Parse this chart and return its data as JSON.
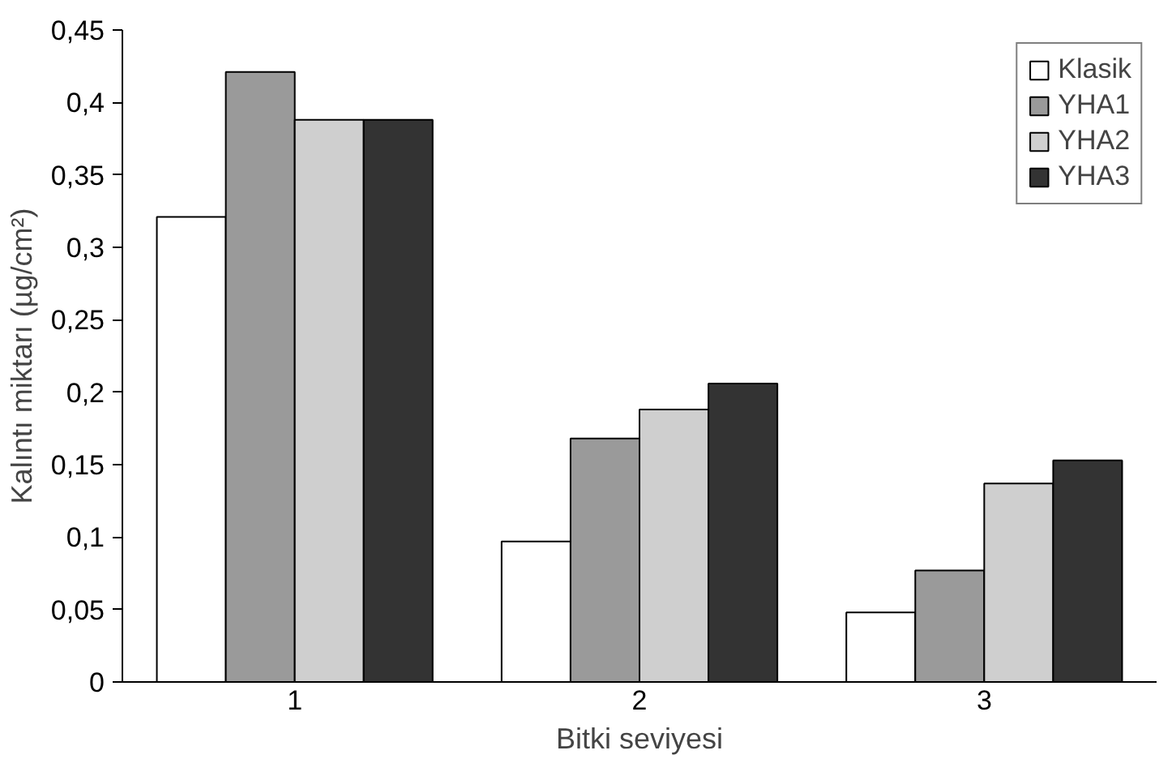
{
  "chart_data": {
    "type": "bar",
    "xlabel": "Bitki seviyesi",
    "ylabel": "Kalıntı miktarı (µg/cm²)",
    "categories": [
      "1",
      "2",
      "3"
    ],
    "series": [
      {
        "name": "Klasik",
        "color": "#ffffff",
        "values": [
          0.321,
          0.097,
          0.048
        ]
      },
      {
        "name": "YHA1",
        "color": "#9a9a9a",
        "values": [
          0.421,
          0.168,
          0.077
        ]
      },
      {
        "name": "YHA2",
        "color": "#cfcfcf",
        "values": [
          0.388,
          0.188,
          0.137
        ]
      },
      {
        "name": "YHA3",
        "color": "#333333",
        "values": [
          0.388,
          0.206,
          0.153
        ]
      }
    ],
    "ylim": [
      0,
      0.45
    ],
    "yticks": [
      {
        "value": 0,
        "label": "0"
      },
      {
        "value": 0.05,
        "label": "0,05"
      },
      {
        "value": 0.1,
        "label": "0,1"
      },
      {
        "value": 0.15,
        "label": "0,15"
      },
      {
        "value": 0.2,
        "label": "0,2"
      },
      {
        "value": 0.25,
        "label": "0,25"
      },
      {
        "value": 0.3,
        "label": "0,3"
      },
      {
        "value": 0.35,
        "label": "0,35"
      },
      {
        "value": 0.4,
        "label": "0,4"
      },
      {
        "value": 0.45,
        "label": "0,45"
      }
    ],
    "grid": false,
    "legend": "top right"
  }
}
